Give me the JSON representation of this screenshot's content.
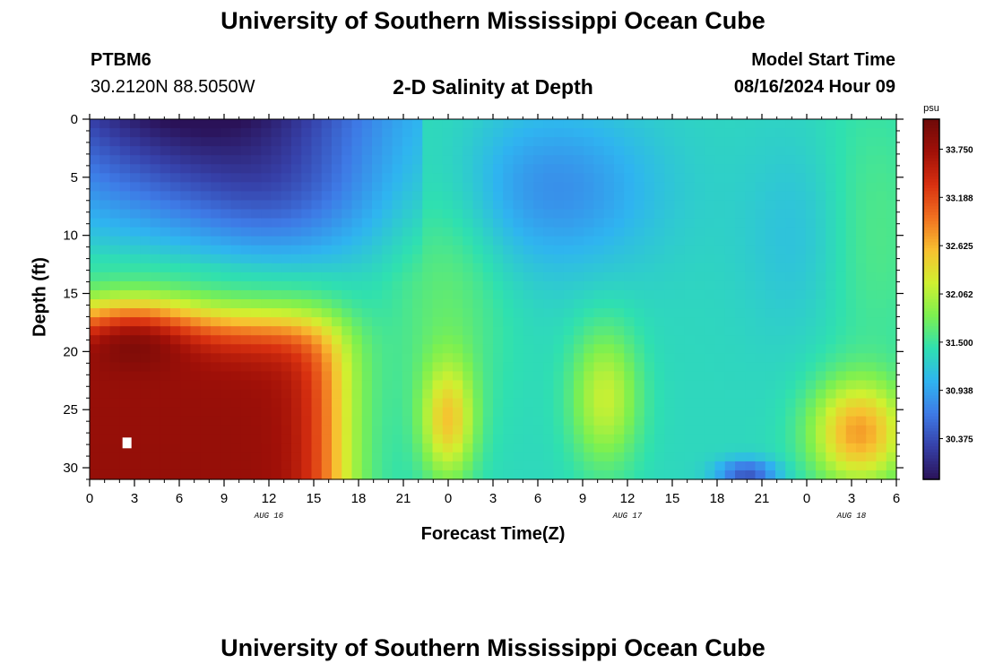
{
  "header": {
    "title": "University of Southern Mississippi Ocean Cube",
    "station": "PTBM6",
    "coordinates": "30.2120N  88.5050W",
    "subtitle": "2-D Salinity at Depth",
    "model_start_label": "Model Start Time",
    "model_start_value": "08/16/2024 Hour 09"
  },
  "footer": {
    "title": "University of Southern Mississippi Ocean Cube"
  },
  "chart_data": {
    "type": "heatmap",
    "title": "2-D Salinity at Depth",
    "xlabel": "Forecast Time(Z)",
    "ylabel": "Depth (ft)",
    "xlim": [
      0,
      54
    ],
    "ylim": [
      31,
      0
    ],
    "x_tick_labels": [
      "0",
      "3",
      "6",
      "9",
      "12",
      "15",
      "18",
      "21",
      "0",
      "3",
      "6",
      "9",
      "12",
      "15",
      "18",
      "21",
      "0",
      "3",
      "6"
    ],
    "date_labels": [
      {
        "label": "AUG 16",
        "at_hour": 12
      },
      {
        "label": "AUG 17",
        "at_hour": 36
      },
      {
        "label": "AUG 18",
        "at_hour": 51
      }
    ],
    "y_tick_labels": [
      "0",
      "5",
      "10",
      "15",
      "20",
      "25",
      "30"
    ],
    "colorbar": {
      "units": "psu",
      "min": 29.9,
      "max": 34.1,
      "tick_labels": [
        "33.750",
        "33.188",
        "32.625",
        "32.062",
        "31.500",
        "30.938",
        "30.375"
      ],
      "colors": [
        "#2a1258",
        "#3640a8",
        "#3e7ae6",
        "#2fb4f0",
        "#2fe0b0",
        "#7cf050",
        "#d0f030",
        "#f8c030",
        "#f07020",
        "#d83010",
        "#a01008",
        "#6e0a08"
      ]
    }
  }
}
